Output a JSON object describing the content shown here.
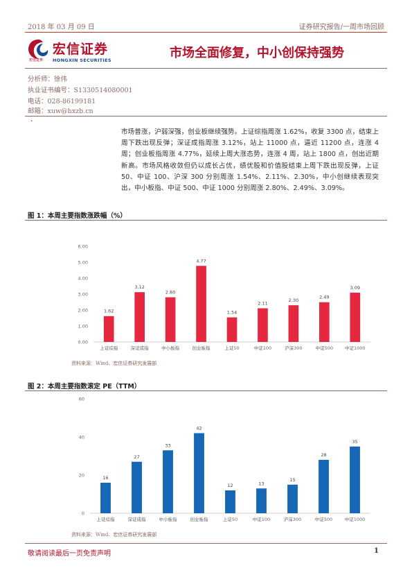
{
  "header": {
    "date": "2018 年 03 月 09 日",
    "report_type": "证券研究报告/一周市场回顾"
  },
  "logo": {
    "name_cn": "宏信证券",
    "name_en": "HONGXIN SECURITIES",
    "sub_cn": "宏信证券"
  },
  "title": "市场全面修复，中小创保持强势",
  "analyst": {
    "name_line": "分析师：徐伟",
    "cert_line": "执业证书编号：S1330514080001",
    "phone_line": "电话：028-86199181",
    "email_line": "邮箱：xuw@hxzb.cn"
  },
  "bullet": "·",
  "summary": "市场普涨，沪弱深强，创业板继续强势。上证综指周涨 1.62%，收复 3300 点，结束上周下跌出现反弹；深证成指周涨 3.12%，站上 11000 点，逼近 11200 点，连涨 4 周；创业板指周涨 4.77%，延续上周大涨态势，连涨 4 周，站上 1800 点，创出近期新高。市场风格收敛但仍以成长占优，绩优股和价值股结束上周下跌出现反弹，上证 50、中证 100、沪深 300 分别周涨 1.54%、2.11%、2.30%，中小创继续表现突出，中小板指、中证 500、中证 1000 分别周涨 2.80%、2.49%、3.09%。",
  "figures": [
    {
      "title": "图 1：本周主要指数涨跌幅（%）",
      "source": "资料来源：Wind、宏信证券研究发展部"
    },
    {
      "title": "图 2：本周主要指数滚定 PE（TTM）",
      "source": "资料来源：Wind、宏信证券研究发展部"
    }
  ],
  "chart_data": [
    {
      "type": "bar",
      "categories": [
        "上证综指",
        "深证成指",
        "中小板指",
        "创业板指",
        "上证50",
        "中证100",
        "沪深300",
        "中证500",
        "中证1000"
      ],
      "values": [
        1.62,
        3.12,
        2.8,
        4.77,
        1.54,
        2.11,
        2.3,
        2.49,
        3.09
      ],
      "value_labels": [
        "1.62",
        "3.12",
        "2.80",
        "4.77",
        "1.54",
        "2.11",
        "2.30",
        "2.49",
        "3.09"
      ],
      "yticks": [
        "0.00",
        "1.00",
        "2.00",
        "3.00",
        "4.00",
        "5.00",
        "6.00"
      ],
      "ylim": [
        0,
        6
      ],
      "color": "#e5283f",
      "grid": false
    },
    {
      "type": "bar",
      "categories": [
        "上证综指",
        "深证成指",
        "中小板指",
        "创业板指",
        "上证50",
        "中证100",
        "沪深300",
        "中证500",
        "中证1000"
      ],
      "values": [
        16,
        27,
        33,
        42,
        12,
        13,
        15,
        28,
        35
      ],
      "value_labels": [
        "16",
        "27",
        "33",
        "42",
        "12",
        "13",
        "15",
        "28",
        "35"
      ],
      "yticks": [
        "0",
        "20",
        "40",
        "60"
      ],
      "ylim": [
        0,
        60
      ],
      "color": "#1667b5",
      "grid": false
    }
  ],
  "footer": {
    "disclaimer": "敬请阅读最后一页免责声明",
    "page": "1"
  }
}
